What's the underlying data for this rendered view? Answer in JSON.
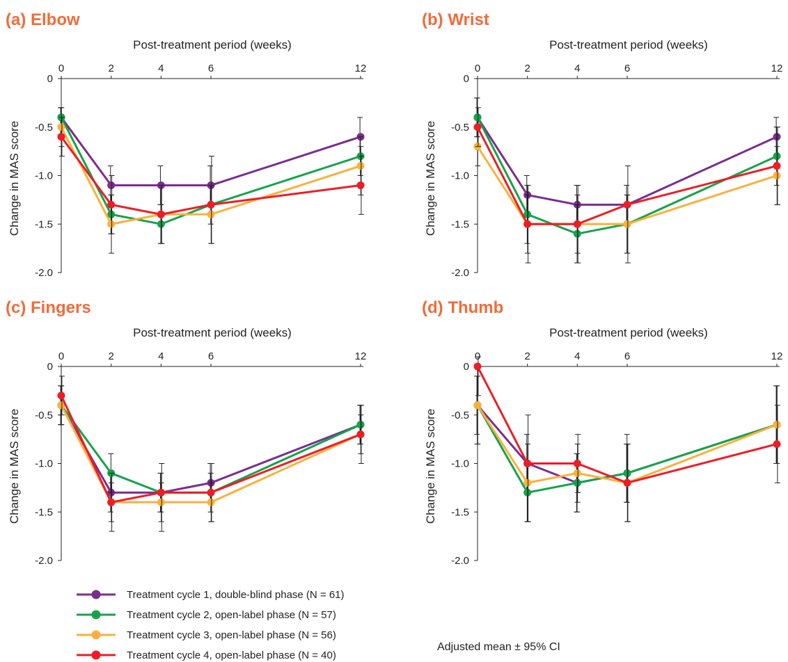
{
  "chart_data": [
    {
      "type": "line",
      "title": "(a) Elbow",
      "xlabel": "Post-treatment period (weeks)",
      "ylabel": "Change in MAS score",
      "x": [
        0,
        2,
        4,
        6,
        12
      ],
      "x_ticks": [
        "0",
        "2",
        "4",
        "6",
        "12"
      ],
      "ylim": [
        -2.0,
        0
      ],
      "y_ticks": [
        "0",
        "-0.5",
        "-1.0",
        "-1.5",
        "-2.0"
      ],
      "series": [
        {
          "name": "Treatment cycle 1, double-blind phase (N = 61)",
          "values": [
            -0.4,
            -1.1,
            -1.1,
            -1.1,
            -0.6
          ],
          "ci_low": [
            -0.6,
            -1.3,
            -1.3,
            -1.3,
            -0.8
          ],
          "ci_high": [
            -0.3,
            -0.9,
            -0.9,
            -0.9,
            -0.4
          ]
        },
        {
          "name": "Treatment cycle 2, open-label phase (N = 57)",
          "values": [
            -0.4,
            -1.4,
            -1.5,
            -1.3,
            -0.8
          ],
          "ci_low": [
            -0.6,
            -1.6,
            -1.7,
            -1.5,
            -1.0
          ],
          "ci_high": [
            -0.3,
            -1.2,
            -1.3,
            -1.1,
            -0.6
          ]
        },
        {
          "name": "Treatment cycle 3, open-label phase (N = 56)",
          "values": [
            -0.5,
            -1.5,
            -1.4,
            -1.4,
            -0.9
          ],
          "ci_low": [
            -0.7,
            -1.8,
            -1.7,
            -1.7,
            -1.2
          ],
          "ci_high": [
            -0.3,
            -1.2,
            -1.1,
            -1.1,
            -0.7
          ]
        },
        {
          "name": "Treatment cycle 4, open-label phase (N = 40)",
          "values": [
            -0.6,
            -1.3,
            -1.4,
            -1.3,
            -1.1
          ],
          "ci_low": [
            -0.8,
            -1.6,
            -1.7,
            -1.7,
            -1.4
          ],
          "ci_high": [
            -0.4,
            -1.0,
            -1.1,
            -0.8,
            -0.8
          ]
        }
      ]
    },
    {
      "type": "line",
      "title": "(b) Wrist",
      "xlabel": "Post-treatment period (weeks)",
      "ylabel": "Change in MAS score",
      "x": [
        0,
        2,
        4,
        6,
        12
      ],
      "x_ticks": [
        "0",
        "2",
        "4",
        "6",
        "12"
      ],
      "ylim": [
        -2.0,
        0
      ],
      "y_ticks": [
        "0",
        "-0.5",
        "-1.0",
        "-1.5",
        "-2.0"
      ],
      "series": [
        {
          "name": "Treatment cycle 1, double-blind phase (N = 61)",
          "values": [
            -0.4,
            -1.2,
            -1.3,
            -1.3,
            -0.6
          ],
          "ci_low": [
            -0.6,
            -1.4,
            -1.5,
            -1.5,
            -0.8
          ],
          "ci_high": [
            -0.2,
            -1.0,
            -1.1,
            -1.1,
            -0.4
          ]
        },
        {
          "name": "Treatment cycle 2, open-label phase (N = 57)",
          "values": [
            -0.4,
            -1.4,
            -1.6,
            -1.5,
            -0.8
          ],
          "ci_low": [
            -0.6,
            -1.7,
            -1.9,
            -1.8,
            -1.1
          ],
          "ci_high": [
            -0.2,
            -1.1,
            -1.3,
            -1.2,
            -0.5
          ]
        },
        {
          "name": "Treatment cycle 3, open-label phase (N = 56)",
          "values": [
            -0.7,
            -1.5,
            -1.5,
            -1.5,
            -1.0
          ],
          "ci_low": [
            -0.9,
            -1.8,
            -1.8,
            -1.8,
            -1.3
          ],
          "ci_high": [
            -0.5,
            -1.2,
            -1.2,
            -1.2,
            -0.7
          ]
        },
        {
          "name": "Treatment cycle 4, open-label phase (N = 40)",
          "values": [
            -0.5,
            -1.5,
            -1.5,
            -1.3,
            -0.9
          ],
          "ci_low": [
            -0.7,
            -1.9,
            -1.9,
            -1.9,
            -1.3
          ],
          "ci_high": [
            -0.3,
            -1.1,
            -1.1,
            -0.9,
            -0.5
          ]
        }
      ]
    },
    {
      "type": "line",
      "title": "(c) Fingers",
      "xlabel": "Post-treatment period (weeks)",
      "ylabel": "Change in MAS score",
      "x": [
        0,
        2,
        4,
        6,
        12
      ],
      "x_ticks": [
        "0",
        "2",
        "4",
        "6",
        "12"
      ],
      "ylim": [
        -2.0,
        0
      ],
      "y_ticks": [
        "0",
        "-0.5",
        "-1.0",
        "-1.5",
        "-2.0"
      ],
      "series": [
        {
          "name": "Treatment cycle 1, double-blind phase (N = 61)",
          "values": [
            -0.4,
            -1.3,
            -1.3,
            -1.2,
            -0.6
          ],
          "ci_low": [
            -0.6,
            -1.5,
            -1.5,
            -1.4,
            -0.8
          ],
          "ci_high": [
            -0.2,
            -1.1,
            -1.1,
            -1.0,
            -0.4
          ]
        },
        {
          "name": "Treatment cycle 2, open-label phase (N = 57)",
          "values": [
            -0.4,
            -1.1,
            -1.3,
            -1.3,
            -0.6
          ],
          "ci_low": [
            -0.6,
            -1.3,
            -1.5,
            -1.5,
            -0.8
          ],
          "ci_high": [
            -0.2,
            -0.9,
            -1.1,
            -1.1,
            -0.4
          ]
        },
        {
          "name": "Treatment cycle 3, open-label phase (N = 56)",
          "values": [
            -0.4,
            -1.4,
            -1.4,
            -1.4,
            -0.7
          ],
          "ci_low": [
            -0.6,
            -1.6,
            -1.6,
            -1.6,
            -0.9
          ],
          "ci_high": [
            -0.2,
            -1.2,
            -1.2,
            -1.2,
            -0.5
          ]
        },
        {
          "name": "Treatment cycle 4, open-label phase (N = 40)",
          "values": [
            -0.3,
            -1.4,
            -1.3,
            -1.3,
            -0.7
          ],
          "ci_low": [
            -0.5,
            -1.7,
            -1.7,
            -1.6,
            -1.0
          ],
          "ci_high": [
            -0.1,
            -1.1,
            -1.0,
            -1.0,
            -0.4
          ]
        }
      ]
    },
    {
      "type": "line",
      "title": "(d) Thumb",
      "xlabel": "Post-treatment period (weeks)",
      "ylabel": "Change in MAS score",
      "x": [
        0,
        2,
        4,
        6,
        12
      ],
      "x_ticks": [
        "0",
        "2",
        "4",
        "6",
        "12"
      ],
      "ylim": [
        -2.0,
        0
      ],
      "y_ticks": [
        "0",
        "-0.5",
        "-1.0",
        "-1.5",
        "-2.0"
      ],
      "series": [
        {
          "name": "Treatment cycle 1, double-blind phase (N = 61)",
          "values": [
            -0.4,
            -1.0,
            -1.2,
            -1.1,
            -0.6
          ],
          "ci_low": [
            -0.7,
            -1.3,
            -1.5,
            -1.4,
            -1.0
          ],
          "ci_high": [
            -0.1,
            -0.7,
            -0.9,
            -0.8,
            -0.2
          ]
        },
        {
          "name": "Treatment cycle 2, open-label phase (N = 57)",
          "values": [
            -0.4,
            -1.3,
            -1.2,
            -1.1,
            -0.6
          ],
          "ci_low": [
            -0.8,
            -1.6,
            -1.5,
            -1.4,
            -1.0
          ],
          "ci_high": [
            -0.1,
            -1.0,
            -0.9,
            -0.7,
            -0.2
          ]
        },
        {
          "name": "Treatment cycle 3, open-label phase (N = 56)",
          "values": [
            -0.4,
            -1.2,
            -1.1,
            -1.2,
            -0.6
          ],
          "ci_low": [
            -0.8,
            -1.6,
            -1.4,
            -1.6,
            -1.0
          ],
          "ci_high": [
            -0.1,
            -0.8,
            -0.8,
            -0.8,
            -0.2
          ]
        },
        {
          "name": "Treatment cycle 4, open-label phase (N = 40)",
          "values": [
            0,
            -1.0,
            -1.0,
            -1.2,
            -0.8
          ],
          "ci_low": [
            -0.3,
            -1.6,
            -1.3,
            -1.6,
            -1.2
          ],
          "ci_high": [
            0.1,
            -0.5,
            -0.7,
            -0.8,
            -0.4
          ]
        }
      ]
    }
  ],
  "legend": {
    "position": "bottom-left",
    "items": [
      {
        "label": "Treatment cycle 1, double-blind phase (N = 61)",
        "color": "#7b2d8e"
      },
      {
        "label": "Treatment cycle 2, open-label phase (N = 57)",
        "color": "#13a44a"
      },
      {
        "label": "Treatment cycle 3, open-label phase (N = 56)",
        "color": "#fbb03b"
      },
      {
        "label": "Treatment cycle 4, open-label phase (N = 40)",
        "color": "#ee1c25"
      }
    ]
  },
  "note": "Adjusted mean ± 95% CI",
  "colors": {
    "title": "#f26b3a",
    "series": [
      "#7b2d8e",
      "#13a44a",
      "#fbb03b",
      "#ee1c25"
    ],
    "axis": "#222222"
  }
}
